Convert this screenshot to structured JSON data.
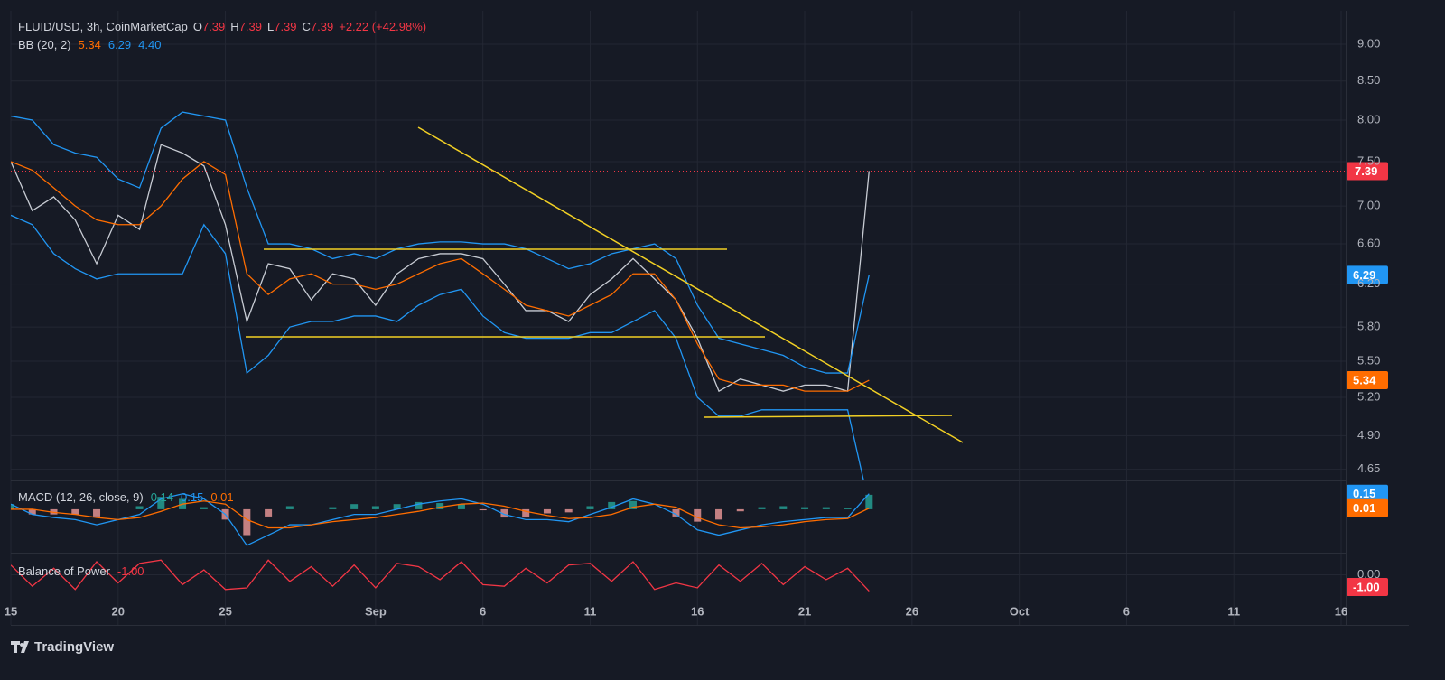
{
  "chart_data": [
    {
      "type": "line",
      "title": "FLUID/USD, 3h, CoinMarketCap",
      "log_scale": true,
      "grid": true,
      "status": [
        {
          "key": "O",
          "value": "7.39"
        },
        {
          "key": "H",
          "value": "7.39"
        },
        {
          "key": "L",
          "value": "7.39"
        },
        {
          "key": "C",
          "value": "7.39"
        }
      ],
      "change": "+2.22 (+42.98%)",
      "indicator": "BB (20, 2)",
      "legend_values": [
        "5.34",
        "6.29",
        "4.40"
      ],
      "x": [
        "Aug 15",
        "Aug 16",
        "Aug 17",
        "Aug 18",
        "Aug 19",
        "Aug 20",
        "Aug 21",
        "Aug 22",
        "Aug 23",
        "Aug 24",
        "Aug 25",
        "Aug 26",
        "Aug 27",
        "Aug 28",
        "Aug 29",
        "Aug 30",
        "Aug 31",
        "Sep 1",
        "Sep 2",
        "Sep 3",
        "Sep 4",
        "Sep 5",
        "Sep 6",
        "Sep 7",
        "Sep 8",
        "Sep 9",
        "Sep 10",
        "Sep 11",
        "Sep 12",
        "Sep 13",
        "Sep 14",
        "Sep 15",
        "Sep 16",
        "Sep 17",
        "Sep 18",
        "Sep 19",
        "Sep 20",
        "Sep 21",
        "Sep 22",
        "Sep 23",
        "Sep 24"
      ],
      "xlim": [
        "Aug 15",
        "Oct 16"
      ],
      "xticks": [
        {
          "value": "Aug 15",
          "label": "15"
        },
        {
          "value": "Aug 20",
          "label": "20"
        },
        {
          "value": "Aug 25",
          "label": "25"
        },
        {
          "value": "Sep 1",
          "label": "Sep"
        },
        {
          "value": "Sep 6",
          "label": "6"
        },
        {
          "value": "Sep 11",
          "label": "11"
        },
        {
          "value": "Sep 16",
          "label": "16"
        },
        {
          "value": "Sep 21",
          "label": "21"
        },
        {
          "value": "Sep 26",
          "label": "26"
        },
        {
          "value": "Oct 1",
          "label": "Oct"
        },
        {
          "value": "Oct 6",
          "label": "6"
        },
        {
          "value": "Oct 11",
          "label": "11"
        },
        {
          "value": "Oct 16",
          "label": "16"
        }
      ],
      "ylim": [
        4.57,
        9.48
      ],
      "yticks": [
        {
          "value": 9,
          "label": "9.00"
        },
        {
          "value": 8.5,
          "label": "8.50"
        },
        {
          "value": 8,
          "label": "8.00"
        },
        {
          "value": 7.5,
          "label": "7.50"
        },
        {
          "value": 7,
          "label": "7.00"
        },
        {
          "value": 6.6,
          "label": "6.60"
        },
        {
          "value": 6.2,
          "label": "6.20"
        },
        {
          "value": 5.8,
          "label": "5.80"
        },
        {
          "value": 5.5,
          "label": "5.50"
        },
        {
          "value": 5.2,
          "label": "5.20"
        },
        {
          "value": 4.9,
          "label": "4.90"
        },
        {
          "value": 4.65,
          "label": "4.65"
        }
      ],
      "close": {
        "color": "#c7cbd3",
        "values": [
          7.5,
          6.95,
          7.1,
          6.85,
          6.4,
          6.9,
          6.75,
          7.7,
          7.6,
          7.45,
          6.8,
          5.85,
          6.4,
          6.35,
          6.05,
          6.3,
          6.25,
          6.0,
          6.3,
          6.45,
          6.5,
          6.5,
          6.45,
          6.2,
          5.95,
          5.95,
          5.85,
          6.1,
          6.25,
          6.45,
          6.25,
          6.05,
          5.7,
          5.25,
          5.35,
          5.3,
          5.25,
          5.3,
          5.3,
          5.25,
          7.39
        ]
      },
      "series": [
        {
          "color": "#ff6d00",
          "badge": true,
          "values": [
            7.5,
            7.4,
            7.2,
            7.0,
            6.85,
            6.8,
            6.8,
            7.0,
            7.3,
            7.5,
            7.35,
            6.3,
            6.1,
            6.25,
            6.3,
            6.2,
            6.2,
            6.15,
            6.2,
            6.3,
            6.4,
            6.45,
            6.3,
            6.15,
            6.0,
            5.95,
            5.9,
            6.0,
            6.1,
            6.3,
            6.3,
            6.05,
            5.65,
            5.35,
            5.3,
            5.3,
            5.3,
            5.25,
            5.25,
            5.25,
            5.34
          ]
        },
        {
          "color": "#2196f3",
          "badge": true,
          "values": [
            8.05,
            8.0,
            7.7,
            7.6,
            7.55,
            7.3,
            7.2,
            7.9,
            8.1,
            8.05,
            8.0,
            7.2,
            6.6,
            6.6,
            6.55,
            6.45,
            6.5,
            6.45,
            6.55,
            6.6,
            6.62,
            6.62,
            6.6,
            6.6,
            6.55,
            6.45,
            6.35,
            6.4,
            6.5,
            6.55,
            6.6,
            6.45,
            6.0,
            5.7,
            5.65,
            5.6,
            5.55,
            5.45,
            5.4,
            5.4,
            6.29
          ]
        },
        {
          "color": "#2196f3",
          "values": [
            6.9,
            6.8,
            6.5,
            6.35,
            6.25,
            6.3,
            6.3,
            6.3,
            6.3,
            6.8,
            6.5,
            5.4,
            5.55,
            5.8,
            5.85,
            5.85,
            5.9,
            5.9,
            5.85,
            6.0,
            6.1,
            6.15,
            5.9,
            5.75,
            5.7,
            5.7,
            5.7,
            5.75,
            5.75,
            5.85,
            5.95,
            5.7,
            5.2,
            5.05,
            5.05,
            5.1,
            5.1,
            5.1,
            5.1,
            5.1,
            4.4
          ]
        }
      ]
    },
    {
      "type": "line",
      "indicator": "MACD (12, 26, close, 9)",
      "legend_values": [
        "0.14",
        "0.15",
        "0.01"
      ],
      "ylim": [
        -0.42,
        0.27
      ],
      "series": [
        {
          "style": "histogram",
          "color": "#26a69a",
          "badge": true,
          "values": [
            0.05,
            -0.05,
            -0.05,
            -0.05,
            -0.07,
            0,
            0.03,
            0.12,
            0.1,
            0.02,
            -0.1,
            -0.25,
            -0.07,
            0.03,
            0,
            0.02,
            0.05,
            0.03,
            0.05,
            0.07,
            0.06,
            0.05,
            -0.01,
            -0.08,
            -0.08,
            -0.04,
            -0.03,
            0.03,
            0.07,
            0.08,
            0,
            -0.07,
            -0.12,
            -0.1,
            -0.02,
            0.02,
            0.03,
            0.02,
            0.02,
            0.01,
            0.14
          ]
        },
        {
          "color": "#2196f3",
          "badge": true,
          "values": [
            0.05,
            -0.05,
            -0.08,
            -0.1,
            -0.15,
            -0.1,
            -0.05,
            0.1,
            0.15,
            0.1,
            -0.05,
            -0.35,
            -0.25,
            -0.15,
            -0.15,
            -0.1,
            -0.05,
            -0.05,
            0.0,
            0.05,
            0.08,
            0.1,
            0.05,
            -0.05,
            -0.1,
            -0.1,
            -0.12,
            -0.05,
            0.02,
            0.1,
            0.05,
            -0.05,
            -0.2,
            -0.25,
            -0.2,
            -0.15,
            -0.12,
            -0.1,
            -0.08,
            -0.08,
            0.15
          ]
        },
        {
          "color": "#ff6d00",
          "badge": true,
          "values": [
            0.0,
            0.0,
            -0.03,
            -0.05,
            -0.08,
            -0.1,
            -0.08,
            -0.02,
            0.05,
            0.08,
            0.05,
            -0.1,
            -0.18,
            -0.18,
            -0.15,
            -0.12,
            -0.1,
            -0.08,
            -0.05,
            -0.02,
            0.02,
            0.05,
            0.06,
            0.03,
            -0.02,
            -0.06,
            -0.09,
            -0.08,
            -0.05,
            0.02,
            0.05,
            0.02,
            -0.08,
            -0.15,
            -0.18,
            -0.17,
            -0.15,
            -0.12,
            -0.1,
            -0.09,
            0.01
          ]
        }
      ]
    },
    {
      "type": "line",
      "indicator": "Balance of Power",
      "legend_values": [
        "-1.00"
      ],
      "ylim": [
        -1.3,
        1.3
      ],
      "yticks": [
        {
          "value": 0,
          "label": "0.00"
        }
      ],
      "series": [
        {
          "color": "#f23645",
          "badge": true,
          "values": [
            0.6,
            -0.7,
            0.4,
            -0.9,
            0.8,
            -0.5,
            0.7,
            0.9,
            -0.6,
            0.3,
            -0.9,
            -0.8,
            0.9,
            -0.4,
            0.5,
            -0.7,
            0.6,
            -0.8,
            0.7,
            0.5,
            -0.3,
            0.8,
            -0.6,
            -0.7,
            0.4,
            -0.5,
            0.6,
            0.7,
            -0.4,
            0.8,
            -0.9,
            -0.5,
            -0.8,
            0.6,
            -0.4,
            0.7,
            -0.6,
            0.5,
            -0.3,
            0.4,
            -1.0
          ]
        }
      ]
    }
  ]
}
